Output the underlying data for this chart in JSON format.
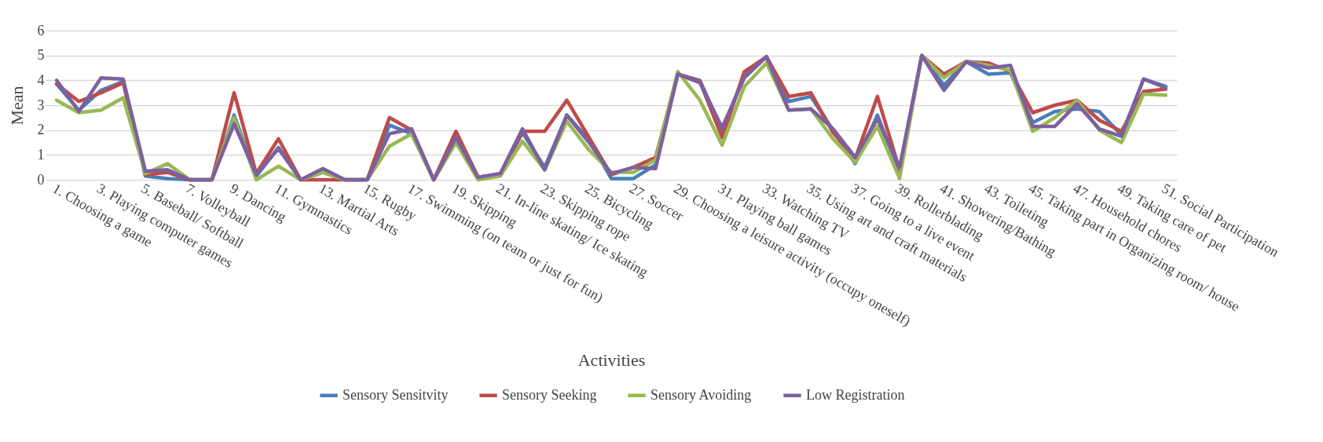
{
  "chart_data": {
    "type": "line",
    "xlabel": "Activities",
    "ylabel": "Mean",
    "ylim": [
      0,
      6
    ],
    "yticks": [
      0,
      1,
      2,
      3,
      4,
      5,
      6
    ],
    "grid": "y",
    "legend": "bottom",
    "line_style": "solid",
    "marker": "none",
    "categories": [
      "1. Choosing a game",
      null,
      "3. Playing computer games",
      null,
      "5. Baseball/ Softball",
      null,
      "7. Volleyball",
      null,
      "9. Dancing",
      null,
      "11. Gymnastics",
      null,
      "13. Martial Arts",
      null,
      "15. Rugby",
      null,
      "17. Swimming (on team or just for fun)",
      null,
      "19. Skipping",
      null,
      "21. In-line skating/ Ice skating",
      null,
      "23. Skipping rope",
      null,
      "25. Bicycling",
      null,
      "27. Soccer",
      null,
      "29. Choosing a leisure activity (occupy oneself)",
      null,
      "31. Playing ball games",
      null,
      "33. Watching TV",
      null,
      "35. Using art and craft materials",
      null,
      "37. Going to a live event",
      null,
      "39. Rollerblading",
      null,
      "41. Showering/Bathing",
      null,
      "43. Toileting",
      null,
      "45. Taking part in Organizing room/ house",
      null,
      "47. Household chores",
      null,
      "49. Taking care of pet",
      null,
      "51. Social Participation"
    ],
    "series": [
      {
        "name": "Sensory Sensitvity",
        "color": "#4a7ebb",
        "values": [
          3.85,
          2.8,
          3.6,
          3.95,
          0.15,
          0.05,
          0,
          0,
          2.6,
          0.15,
          1.3,
          0,
          0.3,
          0,
          0,
          2.2,
          1.85,
          0,
          1.6,
          0.1,
          0.2,
          1.9,
          0.5,
          2.6,
          1.6,
          0.05,
          0.05,
          0.6,
          4.25,
          4.0,
          2.0,
          4.2,
          4.95,
          3.15,
          3.35,
          2.0,
          0.65,
          2.6,
          0.3,
          5.0,
          3.8,
          4.75,
          4.25,
          4.3,
          2.3,
          2.75,
          2.85,
          2.75,
          1.8,
          4.05,
          3.75
        ]
      },
      {
        "name": "Sensory Seeking",
        "color": "#be4b48",
        "values": [
          3.85,
          3.15,
          3.5,
          3.9,
          0.2,
          0.3,
          0,
          0,
          3.5,
          0.25,
          1.65,
          0,
          0,
          0,
          0,
          2.5,
          2.0,
          0,
          1.95,
          0.1,
          0.2,
          1.95,
          1.95,
          3.2,
          1.7,
          0.2,
          0.5,
          0.9,
          4.25,
          3.95,
          1.7,
          4.35,
          4.95,
          3.35,
          3.5,
          1.9,
          0.85,
          3.35,
          0.4,
          5.0,
          4.25,
          4.75,
          4.7,
          4.35,
          2.7,
          3.0,
          3.2,
          2.4,
          1.95,
          3.55,
          3.65
        ]
      },
      {
        "name": "Sensory Avoiding",
        "color": "#98b954",
        "values": [
          3.2,
          2.7,
          2.8,
          3.3,
          0.25,
          0.65,
          0,
          0,
          2.5,
          0,
          0.55,
          0,
          0.3,
          0,
          0,
          1.35,
          1.85,
          0,
          1.5,
          0,
          0.15,
          1.55,
          0.4,
          2.35,
          1.2,
          0.3,
          0.3,
          0.8,
          4.35,
          3.2,
          1.4,
          3.75,
          4.7,
          2.8,
          2.85,
          1.65,
          0.7,
          2.15,
          0.05,
          5.0,
          4.1,
          4.75,
          4.6,
          4.4,
          1.95,
          2.5,
          3.2,
          2.0,
          1.5,
          3.45,
          3.4
        ]
      },
      {
        "name": "Low Registration",
        "color": "#7d60a0",
        "values": [
          4.0,
          2.75,
          4.1,
          4.05,
          0.35,
          0.4,
          0,
          0,
          2.25,
          0.2,
          1.25,
          0,
          0.45,
          0,
          0,
          1.85,
          2.05,
          0,
          1.7,
          0.1,
          0.25,
          2.05,
          0.4,
          2.6,
          1.5,
          0.25,
          0.5,
          0.45,
          4.25,
          3.9,
          2.1,
          4.1,
          4.95,
          2.8,
          2.85,
          2.05,
          0.9,
          2.45,
          0.5,
          5.0,
          3.6,
          4.75,
          4.5,
          4.6,
          2.15,
          2.15,
          3.05,
          2.05,
          1.75,
          4.05,
          3.7
        ]
      }
    ]
  }
}
